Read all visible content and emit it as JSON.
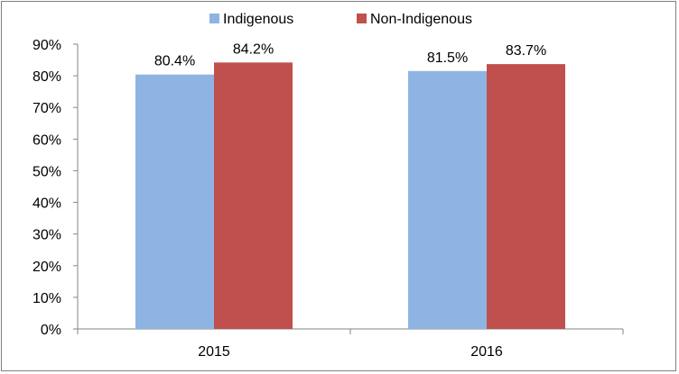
{
  "chart_data": {
    "type": "bar",
    "categories": [
      "2015",
      "2016"
    ],
    "series": [
      {
        "name": "Indigenous",
        "values": [
          80.4,
          81.5
        ],
        "labels": [
          "80.4%",
          "81.5%"
        ],
        "color": "#8eb4e3"
      },
      {
        "name": "Non-Indigenous",
        "values": [
          84.2,
          83.7
        ],
        "labels": [
          "84.2%",
          "83.7%"
        ],
        "color": "#c0504d"
      }
    ],
    "y_ticks": [
      "0%",
      "10%",
      "20%",
      "30%",
      "40%",
      "50%",
      "60%",
      "70%",
      "80%",
      "90%"
    ],
    "ylim": [
      0,
      90
    ],
    "y_unit": "%",
    "grid": false,
    "legend_position": "top-center",
    "title": "",
    "xlabel": "",
    "ylabel": ""
  }
}
